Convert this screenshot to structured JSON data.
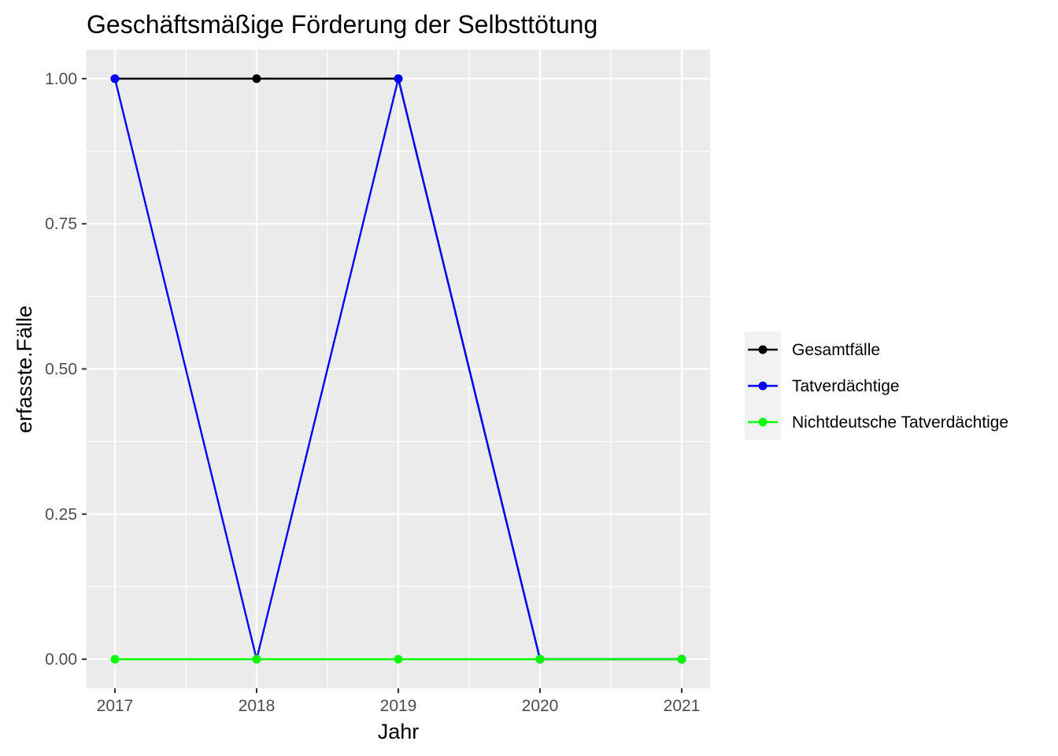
{
  "chart_data": {
    "type": "line",
    "title": "Geschäftsmäßige Förderung der Selbsttötung",
    "xlabel": "Jahr",
    "ylabel": "erfasste.Fälle",
    "x": [
      2017,
      2018,
      2019,
      2020,
      2021
    ],
    "x_tick_labels": [
      "2017",
      "2018",
      "2019",
      "2020",
      "2021"
    ],
    "xlim": [
      2016.8,
      2021.2
    ],
    "ylim": [
      -0.05,
      1.05
    ],
    "y_ticks": [
      0,
      0.25,
      0.5,
      0.75,
      1.0
    ],
    "y_tick_labels": [
      "0.00",
      "0.25",
      "0.50",
      "0.75",
      "1.00"
    ],
    "grid": true,
    "legend_position": "right",
    "series": [
      {
        "name": "Gesamtfälle",
        "color": "#000000",
        "values": [
          1,
          1,
          1,
          0,
          0
        ]
      },
      {
        "name": "Tatverdächtige",
        "color": "#0000ff",
        "values": [
          1,
          0,
          1,
          0,
          0
        ]
      },
      {
        "name": "Nichtdeutsche Tatverdächtige",
        "color": "#00ff00",
        "values": [
          0,
          0,
          0,
          0,
          0
        ]
      }
    ],
    "panel_background": "#ebebeb",
    "grid_color": "#ffffff"
  }
}
